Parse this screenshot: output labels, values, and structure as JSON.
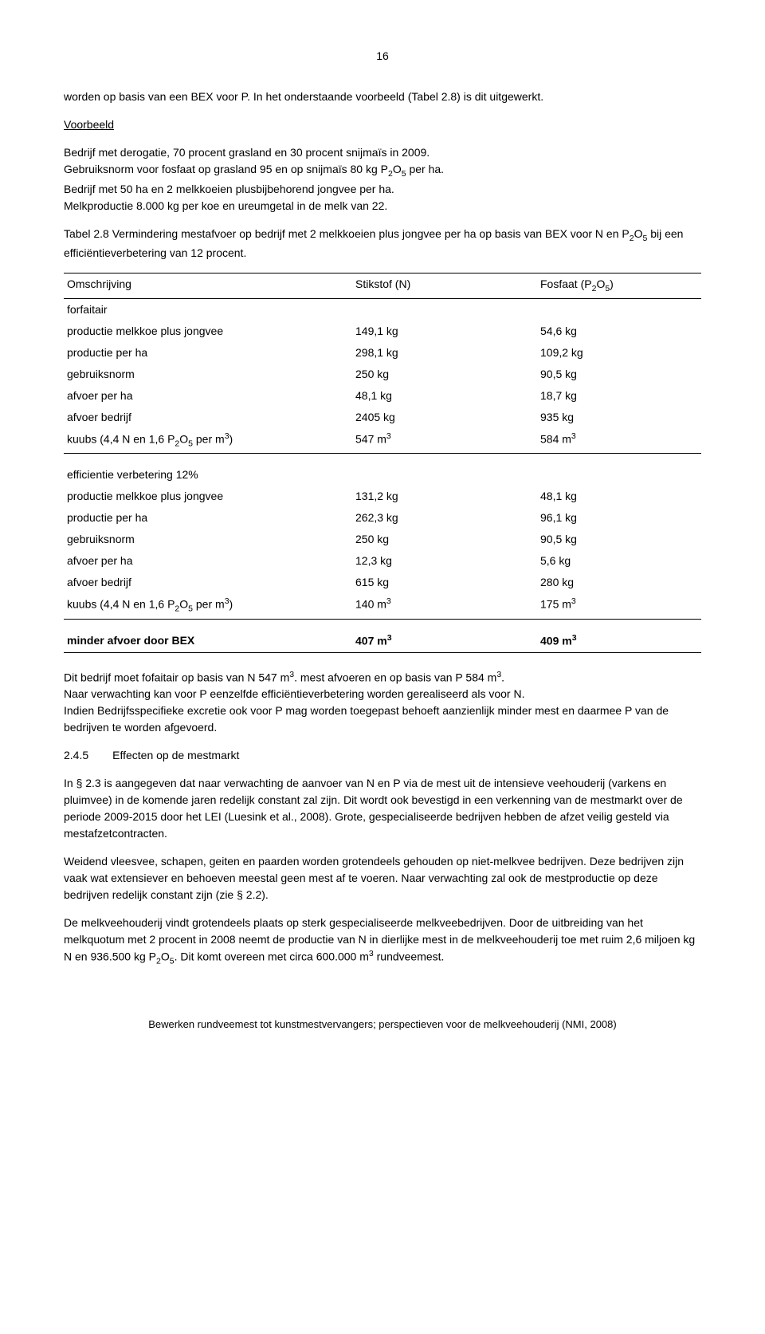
{
  "page_number": "16",
  "intro": {
    "line1": "worden op basis van een BEX voor P. In het onderstaande voorbeeld (Tabel 2.8) is dit uitgewerkt.",
    "example_label": "Voorbeeld",
    "p2a": "Bedrijf met derogatie, 70 procent grasland en 30 procent snijmaïs in 2009.",
    "p2b": "Gebruiksnorm voor fosfaat op grasland 95 en op snijmaïs 80 kg P",
    "p2c": " per ha.",
    "p2d": "Bedrijf met 50 ha en 2 melkkoeien plusbijbehorend jongvee per ha.",
    "p2e": "Melkproductie 8.000 kg per koe en ureumgetal in de melk van 22."
  },
  "table_caption": {
    "a": "Tabel 2.8 Vermindering mestafvoer op bedrijf met 2 melkkoeien plus jongvee per ha op basis van BEX voor N en P",
    "b": "  bij een efficiëntieverbetering van 12 procent."
  },
  "table": {
    "col_h1": "Omschrijving",
    "col_h2": "Stikstof (N)",
    "col_h3a": "Fosfaat (P",
    "col_h3b": ")",
    "sec1": "forfaitair",
    "r1": {
      "label": "productie melkkoe plus jongvee",
      "n": "149,1 kg",
      "p": "54,6 kg"
    },
    "r2": {
      "label": "productie per ha",
      "n": "298,1 kg",
      "p": "109,2 kg"
    },
    "r3": {
      "label": "gebruiksnorm",
      "n": "250 kg",
      "p": "90,5 kg"
    },
    "r4": {
      "label": "afvoer per ha",
      "n": "48,1 kg",
      "p": "18,7 kg"
    },
    "r5": {
      "label": "afvoer bedrijf",
      "n": "2405 kg",
      "p": "935 kg"
    },
    "r6": {
      "label_a": "kuubs (4,4 N en 1,6 P",
      "label_b": " per m",
      "label_c": ")",
      "n": "547 m",
      "p": "584 m"
    },
    "sec2": "efficientie verbetering 12%",
    "r7": {
      "label": "productie melkkoe plus jongvee",
      "n": "131,2 kg",
      "p": "48,1 kg"
    },
    "r8": {
      "label": "productie per ha",
      "n": "262,3 kg",
      "p": "96,1 kg"
    },
    "r9": {
      "label": "gebruiksnorm",
      "n": "250 kg",
      "p": "90,5 kg"
    },
    "r10": {
      "label": "afvoer per ha",
      "n": "12,3 kg",
      "p": "5,6 kg"
    },
    "r11": {
      "label": "afvoer bedrijf",
      "n": "615 kg",
      "p": "280 kg"
    },
    "r12": {
      "label_a": "kuubs (4,4 N en 1,6 P",
      "label_b": " per m",
      "label_c": ")",
      "n": "140 m",
      "p": "175 m"
    },
    "summary": {
      "label": "minder afvoer door BEX",
      "n": "407 m",
      "p": "409 m"
    }
  },
  "post": {
    "p1a": "Dit bedrijf moet fofaitair op basis van N 547 m",
    "p1b": ". mest afvoeren en op basis van P 584 m",
    "p1c": ".",
    "p2": "Naar verwachting kan voor P eenzelfde efficiëntieverbetering worden gerealiseerd als voor N.",
    "p3": "Indien Bedrijfsspecifieke excretie ook voor P mag worden toegepast behoeft aanzienlijk minder mest en daarmee P van de bedrijven te worden afgevoerd."
  },
  "heading": {
    "num": "2.4.5",
    "text": "Effecten op de mestmarkt"
  },
  "body2": {
    "p1": "In § 2.3 is aangegeven dat naar verwachting de aanvoer van N en P via de mest uit de intensieve veehouderij (varkens en pluimvee) in de komende jaren redelijk constant zal zijn. Dit wordt ook bevestigd in een verkenning van de mestmarkt over de periode 2009-2015 door het LEI (Luesink et al., 2008). Grote, gespecialiseerde bedrijven hebben de afzet veilig gesteld via mestafzetcontracten.",
    "p2": "Weidend vleesvee, schapen, geiten en paarden worden grotendeels gehouden op niet-melkvee bedrijven. Deze bedrijven zijn vaak wat extensiever en behoeven meestal geen mest af te voeren. Naar verwachting zal ook de mestproductie op deze bedrijven redelijk constant zijn (zie § 2.2).",
    "p3a": "De melkveehouderij vindt grotendeels plaats op sterk gespecialiseerde melkveebedrijven. Door de uitbreiding van het melkquotum met 2 procent in 2008 neemt de productie van N in dierlijke mest in de melkveehouderij toe met ruim 2,6 miljoen kg N en 936.500 kg P",
    "p3b": ". Dit komt overeen met circa 600.000 m",
    "p3c": " rundveemest."
  },
  "footer": "Bewerken rundveemest tot kunstmestvervangers; perspectieven voor de melkveehouderij (NMI, 2008)"
}
